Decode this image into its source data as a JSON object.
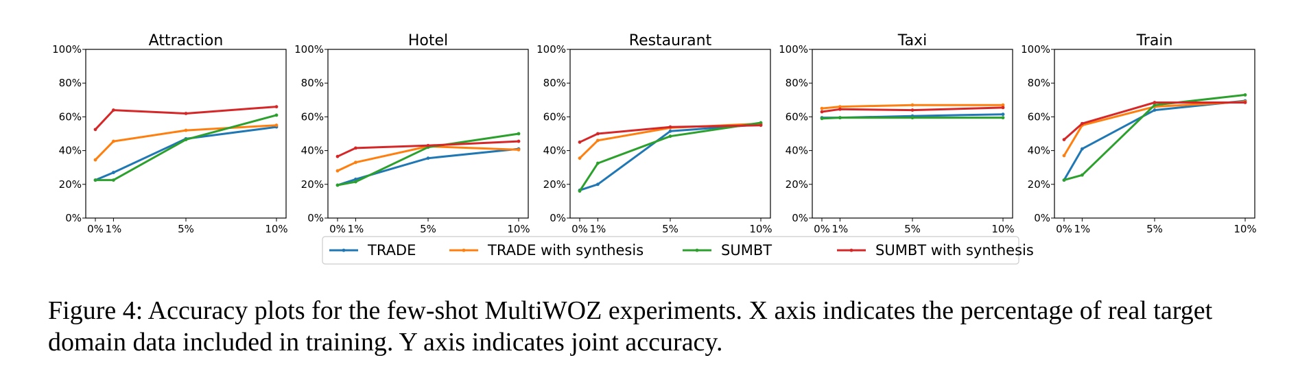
{
  "chart_data": [
    {
      "type": "line",
      "title": "Attraction",
      "x": [
        0,
        1,
        5,
        10
      ],
      "xticklabels": [
        "0%",
        "1%",
        "5%",
        "10%"
      ],
      "ylim": [
        0,
        100
      ],
      "yticklabels": [
        "0%",
        "20%",
        "40%",
        "60%",
        "80%",
        "100%"
      ],
      "series": [
        {
          "name": "TRADE",
          "values": [
            22.5,
            27,
            47,
            54
          ]
        },
        {
          "name": "TRADE with synthesis",
          "values": [
            34.5,
            45.5,
            52,
            55
          ]
        },
        {
          "name": "SUMBT",
          "values": [
            22.5,
            22.5,
            46.5,
            61
          ]
        },
        {
          "name": "SUMBT with synthesis",
          "values": [
            52.5,
            64,
            62,
            66
          ]
        }
      ]
    },
    {
      "type": "line",
      "title": "Hotel",
      "x": [
        0,
        1,
        5,
        10
      ],
      "xticklabels": [
        "0%",
        "1%",
        "5%",
        "10%"
      ],
      "ylim": [
        0,
        100
      ],
      "yticklabels": [
        "0%",
        "20%",
        "40%",
        "60%",
        "80%",
        "100%"
      ],
      "series": [
        {
          "name": "TRADE",
          "values": [
            19.5,
            23,
            35.5,
            41
          ]
        },
        {
          "name": "TRADE with synthesis",
          "values": [
            28,
            33,
            42.5,
            40.5
          ]
        },
        {
          "name": "SUMBT",
          "values": [
            19.5,
            21.5,
            42,
            50
          ]
        },
        {
          "name": "SUMBT with synthesis",
          "values": [
            36.5,
            41.5,
            43,
            45.5
          ]
        }
      ]
    },
    {
      "type": "line",
      "title": "Restaurant",
      "x": [
        0,
        1,
        5,
        10
      ],
      "xticklabels": [
        "0%",
        "1%",
        "5%",
        "10%"
      ],
      "ylim": [
        0,
        100
      ],
      "yticklabels": [
        "0%",
        "20%",
        "40%",
        "60%",
        "80%",
        "100%"
      ],
      "series": [
        {
          "name": "TRADE",
          "values": [
            16.5,
            20,
            51.5,
            55.5
          ]
        },
        {
          "name": "TRADE with synthesis",
          "values": [
            35.5,
            46,
            53.5,
            56
          ]
        },
        {
          "name": "SUMBT",
          "values": [
            16,
            32.5,
            48.5,
            56.5
          ]
        },
        {
          "name": "SUMBT with synthesis",
          "values": [
            45,
            50,
            54,
            55
          ]
        }
      ]
    },
    {
      "type": "line",
      "title": "Taxi",
      "x": [
        0,
        1,
        5,
        10
      ],
      "xticklabels": [
        "0%",
        "1%",
        "5%",
        "10%"
      ],
      "ylim": [
        0,
        100
      ],
      "yticklabels": [
        "0%",
        "20%",
        "40%",
        "60%",
        "80%",
        "100%"
      ],
      "series": [
        {
          "name": "TRADE",
          "values": [
            59.5,
            59.5,
            60.5,
            61.5
          ]
        },
        {
          "name": "TRADE with synthesis",
          "values": [
            65,
            66,
            67,
            67
          ]
        },
        {
          "name": "SUMBT",
          "values": [
            59,
            59.5,
            59.5,
            59.5
          ]
        },
        {
          "name": "SUMBT with synthesis",
          "values": [
            63,
            64.5,
            64,
            65.5
          ]
        }
      ]
    },
    {
      "type": "line",
      "title": "Train",
      "x": [
        0,
        1,
        5,
        10
      ],
      "xticklabels": [
        "0%",
        "1%",
        "5%",
        "10%"
      ],
      "ylim": [
        0,
        100
      ],
      "yticklabels": [
        "0%",
        "20%",
        "40%",
        "60%",
        "80%",
        "100%"
      ],
      "series": [
        {
          "name": "TRADE",
          "values": [
            22.5,
            41,
            64,
            69.5
          ]
        },
        {
          "name": "TRADE with synthesis",
          "values": [
            37,
            55,
            66,
            69
          ]
        },
        {
          "name": "SUMBT",
          "values": [
            22.5,
            25.5,
            67,
            73
          ]
        },
        {
          "name": "SUMBT with synthesis",
          "values": [
            46.5,
            56,
            68.5,
            68.5
          ]
        }
      ]
    }
  ],
  "colors": {
    "TRADE": "#1f77b4",
    "TRADE with synthesis": "#ff7f0e",
    "SUMBT": "#2ca02c",
    "SUMBT with synthesis": "#d62728"
  },
  "legend": {
    "placement": "bottom-center",
    "items": [
      "TRADE",
      "TRADE with synthesis",
      "SUMBT",
      "SUMBT with synthesis"
    ]
  },
  "caption": "Figure 4: Accuracy plots for the few-shot MultiWOZ experiments. X axis indicates the percentage of real target domain data included in training. Y axis indicates joint accuracy."
}
